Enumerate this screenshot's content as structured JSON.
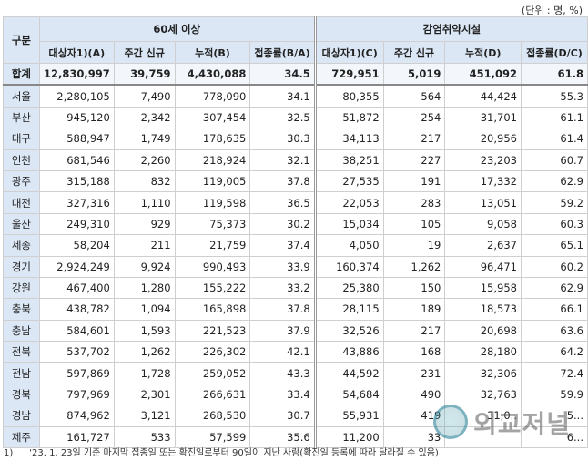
{
  "unit_note": "(단위 : 명, %)",
  "header": {
    "group_label": "구분",
    "group1": "60세 이상",
    "group2": "감염취약시설",
    "cols1": [
      "대상자1)(A)",
      "주간 신규",
      "누적(B)",
      "접종률(B/A)"
    ],
    "cols2": [
      "대상자1)(C)",
      "주간 신규",
      "누적(D)",
      "접종률(D/C)"
    ]
  },
  "rows": [
    {
      "region": "합계",
      "a": "12,830,997",
      "b": "39,759",
      "c": "4,430,088",
      "d": "34.5",
      "e": "729,951",
      "f": "5,019",
      "g": "451,092",
      "h": "61.8"
    },
    {
      "region": "서울",
      "a": "2,280,105",
      "b": "7,490",
      "c": "778,090",
      "d": "34.1",
      "e": "80,355",
      "f": "564",
      "g": "44,424",
      "h": "55.3"
    },
    {
      "region": "부산",
      "a": "945,120",
      "b": "2,342",
      "c": "307,454",
      "d": "32.5",
      "e": "51,872",
      "f": "254",
      "g": "31,701",
      "h": "61.1"
    },
    {
      "region": "대구",
      "a": "588,947",
      "b": "1,749",
      "c": "178,635",
      "d": "30.3",
      "e": "34,113",
      "f": "217",
      "g": "20,956",
      "h": "61.4"
    },
    {
      "region": "인천",
      "a": "681,546",
      "b": "2,260",
      "c": "218,924",
      "d": "32.1",
      "e": "38,251",
      "f": "227",
      "g": "23,203",
      "h": "60.7"
    },
    {
      "region": "광주",
      "a": "315,188",
      "b": "832",
      "c": "119,005",
      "d": "37.8",
      "e": "27,535",
      "f": "191",
      "g": "17,332",
      "h": "62.9"
    },
    {
      "region": "대전",
      "a": "327,316",
      "b": "1,110",
      "c": "119,598",
      "d": "36.5",
      "e": "22,053",
      "f": "283",
      "g": "13,051",
      "h": "59.2"
    },
    {
      "region": "울산",
      "a": "249,310",
      "b": "929",
      "c": "75,373",
      "d": "30.2",
      "e": "15,034",
      "f": "105",
      "g": "9,058",
      "h": "60.3"
    },
    {
      "region": "세종",
      "a": "58,204",
      "b": "211",
      "c": "21,759",
      "d": "37.4",
      "e": "4,050",
      "f": "19",
      "g": "2,637",
      "h": "65.1"
    },
    {
      "region": "경기",
      "a": "2,924,249",
      "b": "9,924",
      "c": "990,493",
      "d": "33.9",
      "e": "160,374",
      "f": "1,262",
      "g": "96,471",
      "h": "60.2"
    },
    {
      "region": "강원",
      "a": "467,400",
      "b": "1,280",
      "c": "155,222",
      "d": "33.2",
      "e": "25,380",
      "f": "150",
      "g": "15,958",
      "h": "62.9"
    },
    {
      "region": "충북",
      "a": "438,782",
      "b": "1,094",
      "c": "165,898",
      "d": "37.8",
      "e": "28,115",
      "f": "189",
      "g": "18,573",
      "h": "66.1"
    },
    {
      "region": "충남",
      "a": "584,601",
      "b": "1,593",
      "c": "221,523",
      "d": "37.9",
      "e": "32,526",
      "f": "217",
      "g": "20,698",
      "h": "63.6"
    },
    {
      "region": "전북",
      "a": "537,702",
      "b": "1,262",
      "c": "226,302",
      "d": "42.1",
      "e": "43,886",
      "f": "168",
      "g": "28,180",
      "h": "64.2"
    },
    {
      "region": "전남",
      "a": "597,869",
      "b": "1,728",
      "c": "259,052",
      "d": "43.3",
      "e": "44,592",
      "f": "231",
      "g": "32,306",
      "h": "72.4"
    },
    {
      "region": "경북",
      "a": "797,969",
      "b": "2,301",
      "c": "266,631",
      "d": "33.4",
      "e": "54,684",
      "f": "490",
      "g": "32,763",
      "h": "59.9"
    },
    {
      "region": "경남",
      "a": "874,962",
      "b": "3,121",
      "c": "268,530",
      "d": "30.7",
      "e": "55,931",
      "f": "419",
      "g": "31,0..",
      "h": "5..."
    },
    {
      "region": "제주",
      "a": "161,727",
      "b": "533",
      "c": "57,599",
      "d": "35.6",
      "e": "11,200",
      "f": "33",
      "g": "",
      "h": "6..."
    }
  ],
  "footnote_marker": "1)",
  "footnote_text": "'23. 1. 23일 기준 마지막 접종일 또는 확진일로부터 90일이 지난 사람(확진일 등록에 따라 달라질 수 있음)",
  "watermark_text": "외교저널"
}
